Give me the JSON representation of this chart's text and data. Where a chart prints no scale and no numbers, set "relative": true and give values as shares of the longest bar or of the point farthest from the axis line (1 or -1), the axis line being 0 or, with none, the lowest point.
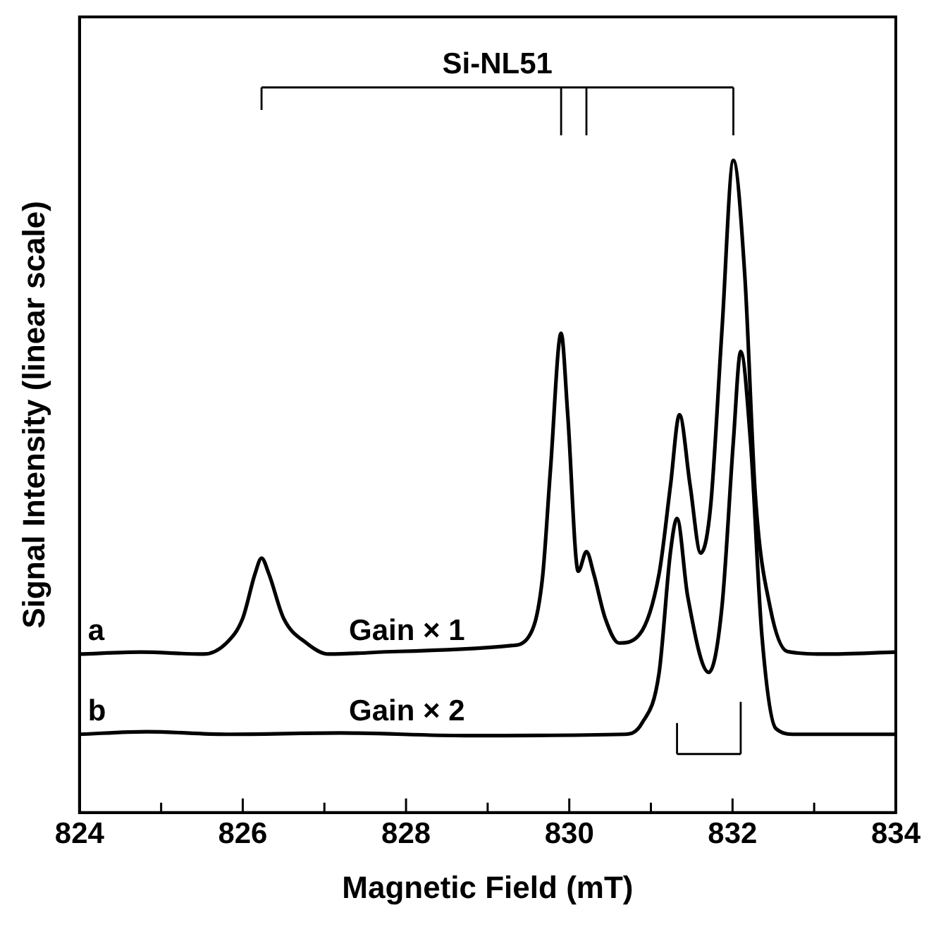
{
  "chart_data": {
    "type": "line",
    "xlabel": "Magnetic Field (mT)",
    "ylabel": "Signal Intensity (linear scale)",
    "relative": true,
    "annotations": [
      "Si-NL51",
      "Gain × 1",
      "Gain × 2"
    ],
    "xlim": [
      824,
      834
    ],
    "xticks": [
      824,
      {
        "value": 825,
        "label": null
      },
      826,
      {
        "value": 827,
        "label": null
      },
      828,
      {
        "value": 829,
        "label": null
      },
      830,
      {
        "value": 831,
        "label": null
      },
      832,
      {
        "value": 833,
        "label": null
      },
      834
    ],
    "legend": false,
    "grid": false,
    "marker": "none",
    "line_style": "solid",
    "series": [
      {
        "name": "a",
        "color": "#000000",
        "x": [
          824,
          824.75,
          825.52,
          825.8,
          826.0,
          826.15,
          826.23,
          826.32,
          826.5,
          826.78,
          827.05,
          827.9,
          829.29,
          829.5,
          829.67,
          829.77,
          829.9,
          829.98,
          830.11,
          830.21,
          830.3,
          830.44,
          830.61,
          830.86,
          831.1,
          831.24,
          831.35,
          831.48,
          831.61,
          831.73,
          831.87,
          832.01,
          832.15,
          832.28,
          832.46,
          832.67,
          833.12,
          834
        ],
        "values": [
          0.243,
          0.246,
          0.243,
          0.26,
          0.298,
          0.366,
          0.39,
          0.366,
          0.298,
          0.26,
          0.243,
          0.247,
          0.256,
          0.269,
          0.358,
          0.527,
          0.735,
          0.612,
          0.37,
          0.4,
          0.366,
          0.298,
          0.26,
          0.273,
          0.366,
          0.502,
          0.61,
          0.502,
          0.398,
          0.468,
          0.739,
          1.0,
          0.824,
          0.485,
          0.315,
          0.247,
          0.243,
          0.246
        ]
      },
      {
        "name": "b",
        "color": "#000000",
        "x": [
          824,
          824.82,
          825.8,
          827.19,
          828.73,
          830.68,
          830.89,
          831.1,
          831.24,
          831.32,
          831.45,
          831.71,
          831.87,
          832.01,
          832.1,
          832.22,
          832.36,
          832.53,
          832.77,
          834
        ],
        "values": [
          0.12,
          0.124,
          0.12,
          0.122,
          0.118,
          0.12,
          0.137,
          0.214,
          0.4,
          0.451,
          0.332,
          0.215,
          0.315,
          0.569,
          0.707,
          0.569,
          0.271,
          0.129,
          0.12,
          0.12
        ]
      }
    ]
  }
}
